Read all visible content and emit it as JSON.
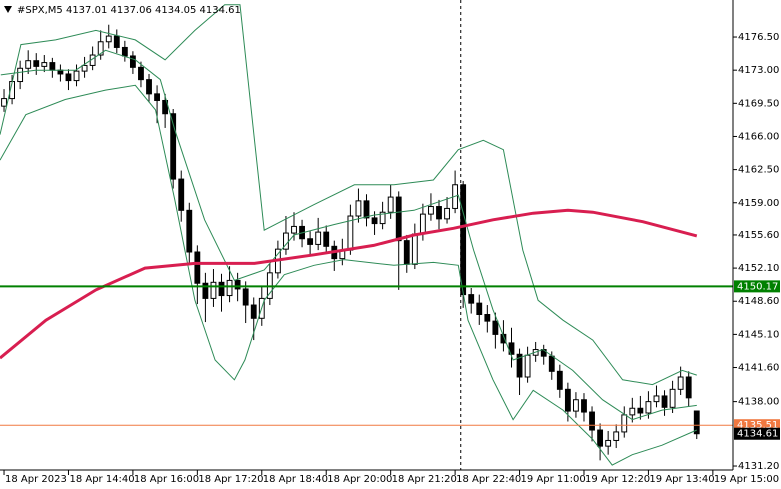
{
  "chart_data": {
    "type": "candlestick",
    "title": "#SPX,M5  4137.01 4137.06 4134.05 4134.61",
    "up_color": "#ffffff",
    "down_color": "#000000",
    "grid": false,
    "xlim": [
      -0.5,
      90.5
    ],
    "xticks": [
      {
        "value": 0,
        "label": "18 Apr 2023"
      },
      {
        "value": 8,
        "label": "18 Apr 14:40"
      },
      {
        "value": 16,
        "label": "18 Apr 16:00"
      },
      {
        "value": 24,
        "label": "18 Apr 17:20"
      },
      {
        "value": 32,
        "label": "18 Apr 18:40"
      },
      {
        "value": 40,
        "label": "18 Apr 20:00"
      },
      {
        "value": 48,
        "label": "18 Apr 21:20"
      },
      {
        "value": 56,
        "label": "18 Apr 22:40"
      },
      {
        "value": 64,
        "label": "19 Apr 11:00"
      },
      {
        "value": 72,
        "label": "19 Apr 12:20"
      },
      {
        "value": 80,
        "label": "19 Apr 13:40"
      },
      {
        "value": 88,
        "label": "19 Apr 15:00"
      }
    ],
    "ylim": [
      4130.78,
      4180.41
    ],
    "yticks": [
      {
        "value": 4176.5,
        "label": "4176.50"
      },
      {
        "value": 4173.0,
        "label": "4173.00"
      },
      {
        "value": 4169.5,
        "label": "4169.50"
      },
      {
        "value": 4166.0,
        "label": "4166.00"
      },
      {
        "value": 4162.5,
        "label": "4162.50"
      },
      {
        "value": 4159.0,
        "label": "4159.00"
      },
      {
        "value": 4155.6,
        "label": "4155.60"
      },
      {
        "value": 4152.1,
        "label": "4152.10"
      },
      {
        "value": 4148.6,
        "label": "4148.60"
      },
      {
        "value": 4145.1,
        "label": "4145.10"
      },
      {
        "value": 4141.6,
        "label": "4141.60"
      },
      {
        "value": 4138.0,
        "label": "4138.00"
      },
      {
        "value": 4131.2,
        "label": "4131.20"
      }
    ],
    "ohlc": [
      [
        4169.2,
        4171.0,
        4168.6,
        4170.0
      ],
      [
        4170.0,
        4172.5,
        4169.4,
        4171.8
      ],
      [
        4171.8,
        4174.0,
        4171.0,
        4173.2
      ],
      [
        4173.2,
        4175.1,
        4172.6,
        4174.0
      ],
      [
        4174.0,
        4174.8,
        4172.5,
        4173.4
      ],
      [
        4173.4,
        4174.6,
        4172.8,
        4173.8
      ],
      [
        4173.8,
        4174.3,
        4172.2,
        4173.0
      ],
      [
        4173.0,
        4173.6,
        4171.8,
        4172.6
      ],
      [
        4172.6,
        4173.1,
        4170.9,
        4171.9
      ],
      [
        4171.9,
        4173.6,
        4171.3,
        4172.9
      ],
      [
        4172.9,
        4174.4,
        4172.2,
        4173.5
      ],
      [
        4173.5,
        4175.5,
        4173.0,
        4174.6
      ],
      [
        4174.6,
        4177.2,
        4174.1,
        4176.0
      ],
      [
        4176.0,
        4177.8,
        4175.3,
        4176.6
      ],
      [
        4176.6,
        4177.3,
        4174.8,
        4175.4
      ],
      [
        4175.4,
        4176.1,
        4173.9,
        4174.5
      ],
      [
        4174.5,
        4175.0,
        4172.6,
        4173.3
      ],
      [
        4173.3,
        4173.9,
        4171.2,
        4172.0
      ],
      [
        4172.0,
        4172.6,
        4169.6,
        4170.5
      ],
      [
        4170.5,
        4171.4,
        4167.4,
        4169.8
      ],
      [
        4169.8,
        4170.5,
        4166.9,
        4168.4
      ],
      [
        4168.4,
        4168.9,
        4160.5,
        4161.5
      ],
      [
        4161.5,
        4162.4,
        4157.0,
        4158.2
      ],
      [
        4158.2,
        4159.0,
        4152.6,
        4153.8
      ],
      [
        4153.8,
        4154.5,
        4148.3,
        4150.5
      ],
      [
        4150.5,
        4151.6,
        4146.4,
        4148.9
      ],
      [
        4148.9,
        4152.0,
        4148.0,
        4150.6
      ],
      [
        4150.6,
        4151.5,
        4147.5,
        4149.2
      ],
      [
        4149.2,
        4152.3,
        4148.5,
        4150.8
      ],
      [
        4150.8,
        4151.6,
        4148.6,
        4149.9
      ],
      [
        4149.9,
        4150.7,
        4146.3,
        4148.2
      ],
      [
        4148.2,
        4149.0,
        4144.5,
        4146.8
      ],
      [
        4146.8,
        4150.2,
        4146.0,
        4148.9
      ],
      [
        4148.9,
        4152.6,
        4148.2,
        4151.6
      ],
      [
        4151.6,
        4155.0,
        4151.0,
        4154.1
      ],
      [
        4154.1,
        4157.6,
        4153.5,
        4155.8
      ],
      [
        4155.8,
        4158.0,
        4155.0,
        4156.5
      ],
      [
        4156.5,
        4157.2,
        4154.3,
        4155.2
      ],
      [
        4155.2,
        4156.0,
        4153.4,
        4154.6
      ],
      [
        4154.6,
        4157.4,
        4154.0,
        4155.9
      ],
      [
        4155.9,
        4156.6,
        4153.6,
        4154.4
      ],
      [
        4154.4,
        4155.0,
        4151.8,
        4153.1
      ],
      [
        4153.1,
        4155.2,
        4152.4,
        4154.0
      ],
      [
        4154.0,
        4158.8,
        4153.5,
        4157.6
      ],
      [
        4157.6,
        4160.5,
        4156.9,
        4159.2
      ],
      [
        4159.2,
        4159.9,
        4156.5,
        4157.4
      ],
      [
        4157.4,
        4158.1,
        4155.6,
        4156.8
      ],
      [
        4156.8,
        4159.1,
        4156.2,
        4158.0
      ],
      [
        4158.0,
        4160.9,
        4157.3,
        4159.6
      ],
      [
        4159.6,
        4160.2,
        4149.8,
        4155.0
      ],
      [
        4155.0,
        4155.6,
        4151.6,
        4152.5
      ],
      [
        4152.5,
        4156.8,
        4152.0,
        4155.7
      ],
      [
        4155.7,
        4158.9,
        4155.0,
        4157.8
      ],
      [
        4157.8,
        4160.0,
        4157.1,
        4158.6
      ],
      [
        4158.6,
        4159.3,
        4156.2,
        4157.3
      ],
      [
        4157.3,
        4159.6,
        4156.8,
        4158.4
      ],
      [
        4158.4,
        4162.4,
        4157.9,
        4160.9
      ],
      [
        4160.9,
        4161.3,
        4147.9,
        4149.3
      ],
      [
        4149.3,
        4150.0,
        4147.3,
        4148.4
      ],
      [
        4148.4,
        4149.3,
        4146.1,
        4147.2
      ],
      [
        4147.2,
        4148.2,
        4145.3,
        4146.5
      ],
      [
        4146.5,
        4147.4,
        4143.6,
        4145.1
      ],
      [
        4145.1,
        4146.6,
        4143.3,
        4144.2
      ],
      [
        4144.2,
        4145.8,
        4141.6,
        4143.0
      ],
      [
        4143.0,
        4143.6,
        4138.7,
        4140.6
      ],
      [
        4140.6,
        4143.8,
        4140.0,
        4142.9
      ],
      [
        4142.9,
        4144.3,
        4142.2,
        4143.5
      ],
      [
        4143.5,
        4144.0,
        4141.9,
        4142.8
      ],
      [
        4142.8,
        4143.3,
        4140.3,
        4141.2
      ],
      [
        4141.2,
        4141.9,
        4138.4,
        4139.3
      ],
      [
        4139.3,
        4140.0,
        4135.9,
        4137.0
      ],
      [
        4137.0,
        4139.0,
        4136.3,
        4138.2
      ],
      [
        4138.2,
        4138.9,
        4135.9,
        4136.9
      ],
      [
        4136.9,
        4137.5,
        4133.8,
        4135.0
      ],
      [
        4135.0,
        4135.7,
        4131.8,
        4133.3
      ],
      [
        4133.3,
        4134.9,
        4132.4,
        4133.9
      ],
      [
        4133.9,
        4135.6,
        4133.1,
        4134.8
      ],
      [
        4134.8,
        4137.5,
        4134.2,
        4136.6
      ],
      [
        4136.6,
        4138.4,
        4135.8,
        4137.3
      ],
      [
        4137.3,
        4138.6,
        4136.1,
        4136.8
      ],
      [
        4136.8,
        4139.1,
        4136.2,
        4138.0
      ],
      [
        4138.0,
        4139.7,
        4137.4,
        4138.6
      ],
      [
        4138.6,
        4139.2,
        4136.5,
        4137.4
      ],
      [
        4137.4,
        4140.2,
        4136.8,
        4139.3
      ],
      [
        4139.3,
        4141.7,
        4138.7,
        4140.6
      ],
      [
        4140.6,
        4141.2,
        4137.5,
        4138.4
      ],
      [
        4137.01,
        4137.06,
        4134.05,
        4134.61
      ]
    ],
    "lines": [
      {
        "color": "#2e8b57",
        "width": 1,
        "x": [
          -0.5,
          2.1,
          6.4,
          11.4,
          16.3,
          20.0,
          23.7,
          27.4,
          29.3,
          31.1,
          32.3,
          34.8,
          38.5,
          43.5,
          48.4,
          53.3,
          56.4,
          59.5,
          62.0,
          64.4,
          66.3,
          69.4,
          73.1,
          76.8,
          80.5,
          84.2,
          86.0
        ],
        "values": [
          4166.2,
          4175.7,
          4176.2,
          4177.2,
          4176.2,
          4174.1,
          4177.2,
          4179.9,
          4179.9,
          4165.6,
          4156.1,
          4157.2,
          4158.8,
          4160.9,
          4160.9,
          4161.4,
          4164.6,
          4165.6,
          4164.6,
          4154.0,
          4148.7,
          4146.6,
          4144.5,
          4140.3,
          4139.8,
          4141.3,
          4140.8
        ]
      },
      {
        "color": "#2e8b57",
        "width": 1,
        "x": [
          -0.4,
          3.9,
          8.9,
          12.6,
          16.3,
          19.4,
          21.2,
          24.9,
          28.6,
          32.3,
          36.0,
          41.0,
          45.9,
          50.9,
          56.4,
          58.3,
          60.7,
          63.2,
          66.9,
          70.6,
          74.3,
          78.0,
          81.7,
          86.0
        ],
        "values": [
          4172.5,
          4173.0,
          4173.0,
          4175.1,
          4174.1,
          4172.0,
          4166.7,
          4157.2,
          4150.8,
          4151.9,
          4155.6,
          4156.7,
          4157.7,
          4158.2,
          4159.8,
          4154.0,
          4147.7,
          4142.4,
          4143.5,
          4141.3,
          4138.2,
          4136.1,
          4137.1,
          4137.6
        ]
      },
      {
        "color": "#2e8b57",
        "width": 1,
        "x": [
          -0.5,
          2.7,
          7.6,
          12.6,
          16.3,
          18.8,
          21.2,
          23.7,
          26.2,
          28.6,
          29.9,
          32.3,
          34.8,
          38.5,
          42.2,
          48.4,
          53.3,
          56.4,
          57.6,
          60.7,
          63.2,
          65.7,
          69.4,
          73.1,
          75.5,
          78.0,
          81.7,
          86.0
        ],
        "values": [
          4163.5,
          4168.3,
          4169.9,
          4170.9,
          4171.4,
          4168.8,
          4159.3,
          4148.7,
          4142.4,
          4140.3,
          4142.4,
          4148.7,
          4151.4,
          4152.4,
          4153.0,
          4152.4,
          4152.7,
          4152.4,
          4146.6,
          4140.3,
          4136.1,
          4139.2,
          4137.1,
          4134.0,
          4131.3,
          4132.4,
          4133.4,
          4135.0
        ]
      },
      {
        "color": "#d81e50",
        "width": 3,
        "x": [
          -0.5,
          5.2,
          11.4,
          17.5,
          23.7,
          31.1,
          38.5,
          45.9,
          50.9,
          55.8,
          60.7,
          65.7,
          70.0,
          73.1,
          79.3,
          86.0
        ],
        "values": [
          4142.6,
          4146.6,
          4149.8,
          4152.1,
          4152.6,
          4152.6,
          4153.5,
          4154.5,
          4155.6,
          4156.3,
          4157.2,
          4157.9,
          4158.2,
          4158.0,
          4157.0,
          4155.5
        ]
      }
    ],
    "hlines": [
      {
        "value": 4150.17,
        "color": "#008000"
      },
      {
        "value": 4135.51,
        "color": "#f07840"
      }
    ],
    "last_price": 4134.61,
    "vline": 56.7
  }
}
